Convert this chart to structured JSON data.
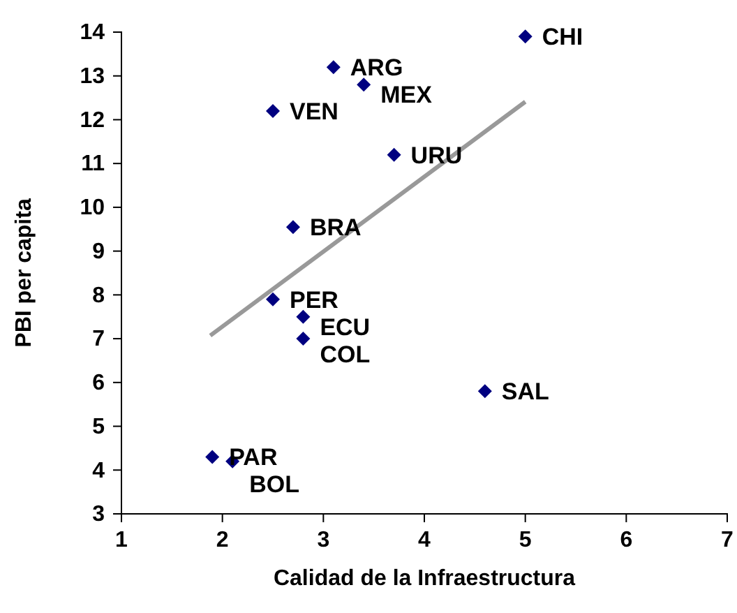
{
  "chart_data": {
    "type": "scatter",
    "xlabel": "Calidad de la Infraestructura",
    "ylabel": "PBI per capita",
    "xlim": [
      1,
      7
    ],
    "ylim": [
      3,
      14
    ],
    "xticks": [
      1,
      2,
      3,
      4,
      5,
      6,
      7
    ],
    "yticks": [
      3,
      4,
      5,
      6,
      7,
      8,
      9,
      10,
      11,
      12,
      13,
      14
    ],
    "grid": false,
    "marker": "diamond",
    "series": [
      {
        "color": "#000080",
        "x": [
          5.0,
          3.1,
          3.4,
          2.5,
          3.7,
          2.7,
          2.5,
          2.8,
          2.8,
          4.6,
          1.9,
          2.1
        ],
        "values": [
          13.9,
          13.2,
          12.8,
          12.2,
          11.2,
          9.55,
          7.9,
          7.5,
          7.0,
          5.8,
          4.3,
          4.2
        ]
      },
      {
        "type": "line",
        "color": "#999999",
        "marker": "none",
        "x": [
          1.88,
          5.0
        ],
        "values": [
          7.07,
          12.41
        ]
      }
    ],
    "annotations": [
      {
        "text": "CHI",
        "x": 5.0,
        "y": 13.9
      },
      {
        "text": "ARG",
        "x": 3.1,
        "y": 13.2
      },
      {
        "text": "MEX",
        "x": 3.4,
        "y": 12.8
      },
      {
        "text": "VEN",
        "x": 2.5,
        "y": 12.2
      },
      {
        "text": "URU",
        "x": 3.7,
        "y": 11.2
      },
      {
        "text": "BRA",
        "x": 2.7,
        "y": 9.55
      },
      {
        "text": "PER",
        "x": 2.5,
        "y": 7.9
      },
      {
        "text": "ECU",
        "x": 2.8,
        "y": 7.5
      },
      {
        "text": "COL",
        "x": 2.8,
        "y": 7.0
      },
      {
        "text": "SAL",
        "x": 4.6,
        "y": 5.8
      },
      {
        "text": "PAR",
        "x": 1.9,
        "y": 4.3
      },
      {
        "text": "BOL",
        "x": 2.1,
        "y": 4.2
      }
    ]
  }
}
